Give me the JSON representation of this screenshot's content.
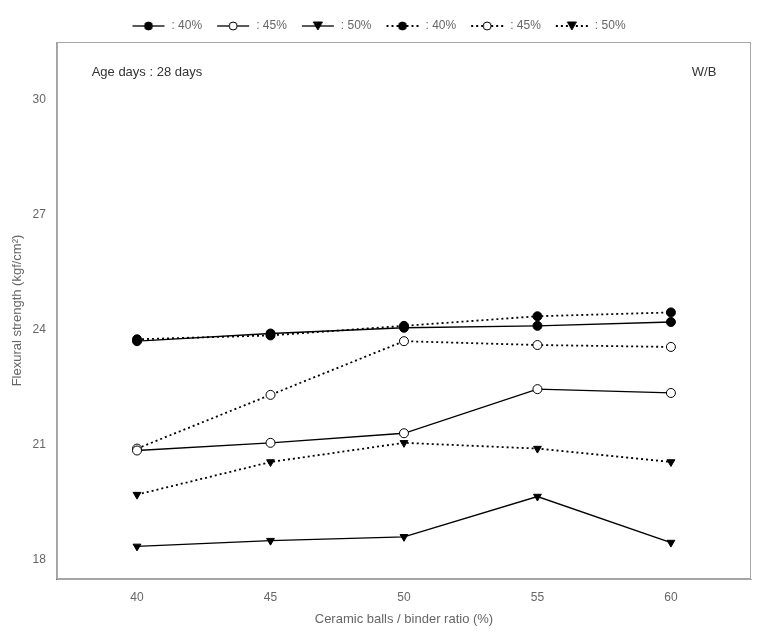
{
  "chart_data": {
    "type": "line",
    "x": [
      40,
      45,
      50,
      55,
      60
    ],
    "xlabel": "Ceramic balls / binder ratio (%)",
    "ylabel": "Flexural strength (kgf/cm²)",
    "annotations": [
      "Age days : 28 days",
      "W/B"
    ],
    "series": [
      {
        "name": ": 40%",
        "color": "#000000",
        "marker": "circle",
        "line_style": "solid",
        "values": [
          23.7,
          23.9,
          24.05,
          24.1,
          24.2
        ]
      },
      {
        "name": ": 45%",
        "color": "#000000",
        "marker": "open_circle",
        "line_style": "solid",
        "values": [
          20.85,
          21.05,
          21.3,
          22.45,
          22.35
        ]
      },
      {
        "name": ": 50%",
        "color": "#000000",
        "marker": "triangle_down",
        "line_style": "solid",
        "values": [
          18.35,
          18.5,
          18.6,
          19.65,
          18.45
        ]
      },
      {
        "name": ": 40%",
        "color": "#000000",
        "marker": "circle",
        "line_style": "dotted",
        "values": [
          23.75,
          23.85,
          24.1,
          24.35,
          24.45
        ]
      },
      {
        "name": ": 45%",
        "color": "#000000",
        "marker": "open_circle",
        "line_style": "dotted",
        "values": [
          20.9,
          22.3,
          23.7,
          23.6,
          23.55
        ]
      },
      {
        "name": ": 50%",
        "color": "#000000",
        "marker": "triangle_down",
        "line_style": "dotted",
        "values": [
          19.7,
          20.55,
          21.05,
          20.9,
          20.55
        ]
      }
    ],
    "xlim": [
      37,
      63
    ],
    "xticks": [
      40,
      45,
      50,
      55,
      60
    ],
    "ylim": [
      17.5,
      31.5
    ],
    "yticks": [
      18,
      21,
      24,
      27,
      30
    ],
    "grid": false,
    "legend": "top"
  }
}
